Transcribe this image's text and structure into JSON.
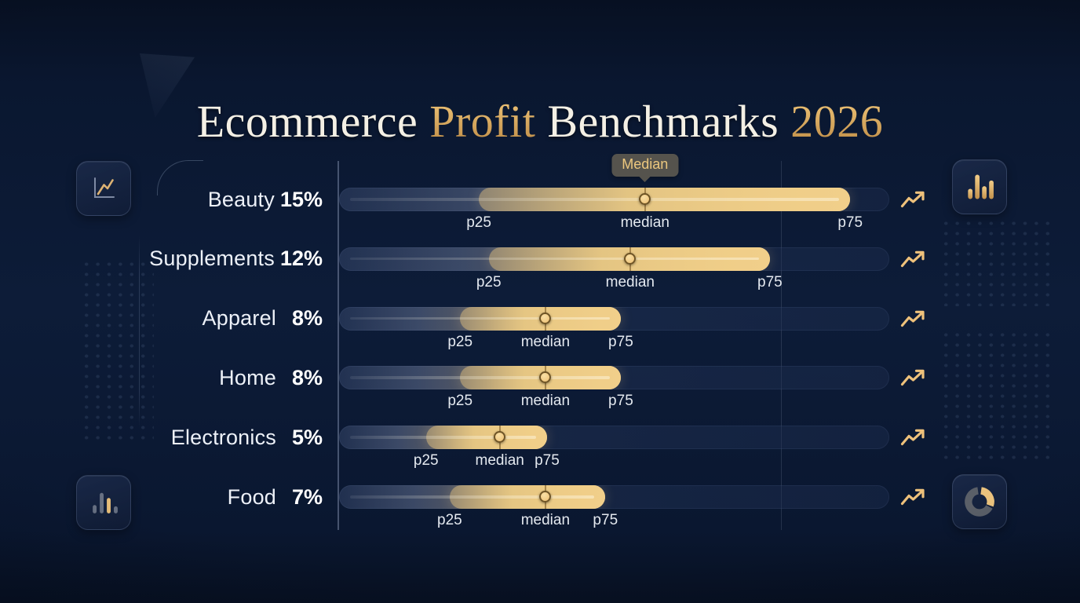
{
  "title": {
    "part1": "Ecommerce",
    "part2": "Profit",
    "part3": "Benchmarks",
    "part4": "2026"
  },
  "tooltip": {
    "text": "Median",
    "row_index": 0
  },
  "colors": {
    "background": "#0d1c38",
    "gold_accent": "#e9c47c",
    "gold_deep": "#c2904a",
    "text_white": "#f4f0e5",
    "track_navy": "#1c2c50",
    "tooltip_bg": "#5a574f"
  },
  "icons": {
    "left_top": "line-chart-icon",
    "left_bottom": "bar-chart-icon",
    "right_top": "bar-chart-gold-icon",
    "right_bottom": "donut-chart-icon",
    "row_indicator": "trend-up-icon"
  },
  "chart_data": {
    "type": "range-bar",
    "title": "Ecommerce Profit Benchmarks 2026",
    "unit": "%",
    "marker_labels": {
      "p25": "p25",
      "median": "median",
      "p75": "p75"
    },
    "categories": [
      "Beauty",
      "Supplements",
      "Apparel",
      "Home",
      "Electronics",
      "Food"
    ],
    "median_values_pct": [
      15,
      12,
      8,
      8,
      5,
      7
    ],
    "rows": [
      {
        "category": "Beauty",
        "value_label": "15%",
        "p25": 0.254,
        "median": 0.556,
        "p75": 0.929
      },
      {
        "category": "Supplements",
        "value_label": "12%",
        "p25": 0.272,
        "median": 0.529,
        "p75": 0.783
      },
      {
        "category": "Apparel",
        "value_label": "8%",
        "p25": 0.22,
        "median": 0.375,
        "p75": 0.512
      },
      {
        "category": "Home",
        "value_label": "8%",
        "p25": 0.22,
        "median": 0.375,
        "p75": 0.512
      },
      {
        "category": "Electronics",
        "value_label": "5%",
        "p25": 0.158,
        "median": 0.292,
        "p75": 0.378
      },
      {
        "category": "Food",
        "value_label": "7%",
        "p25": 0.201,
        "median": 0.375,
        "p75": 0.484
      }
    ],
    "layout": {
      "markers_are_fraction_of_track": true,
      "gridline_fraction": 0.803,
      "legend": "none"
    }
  }
}
